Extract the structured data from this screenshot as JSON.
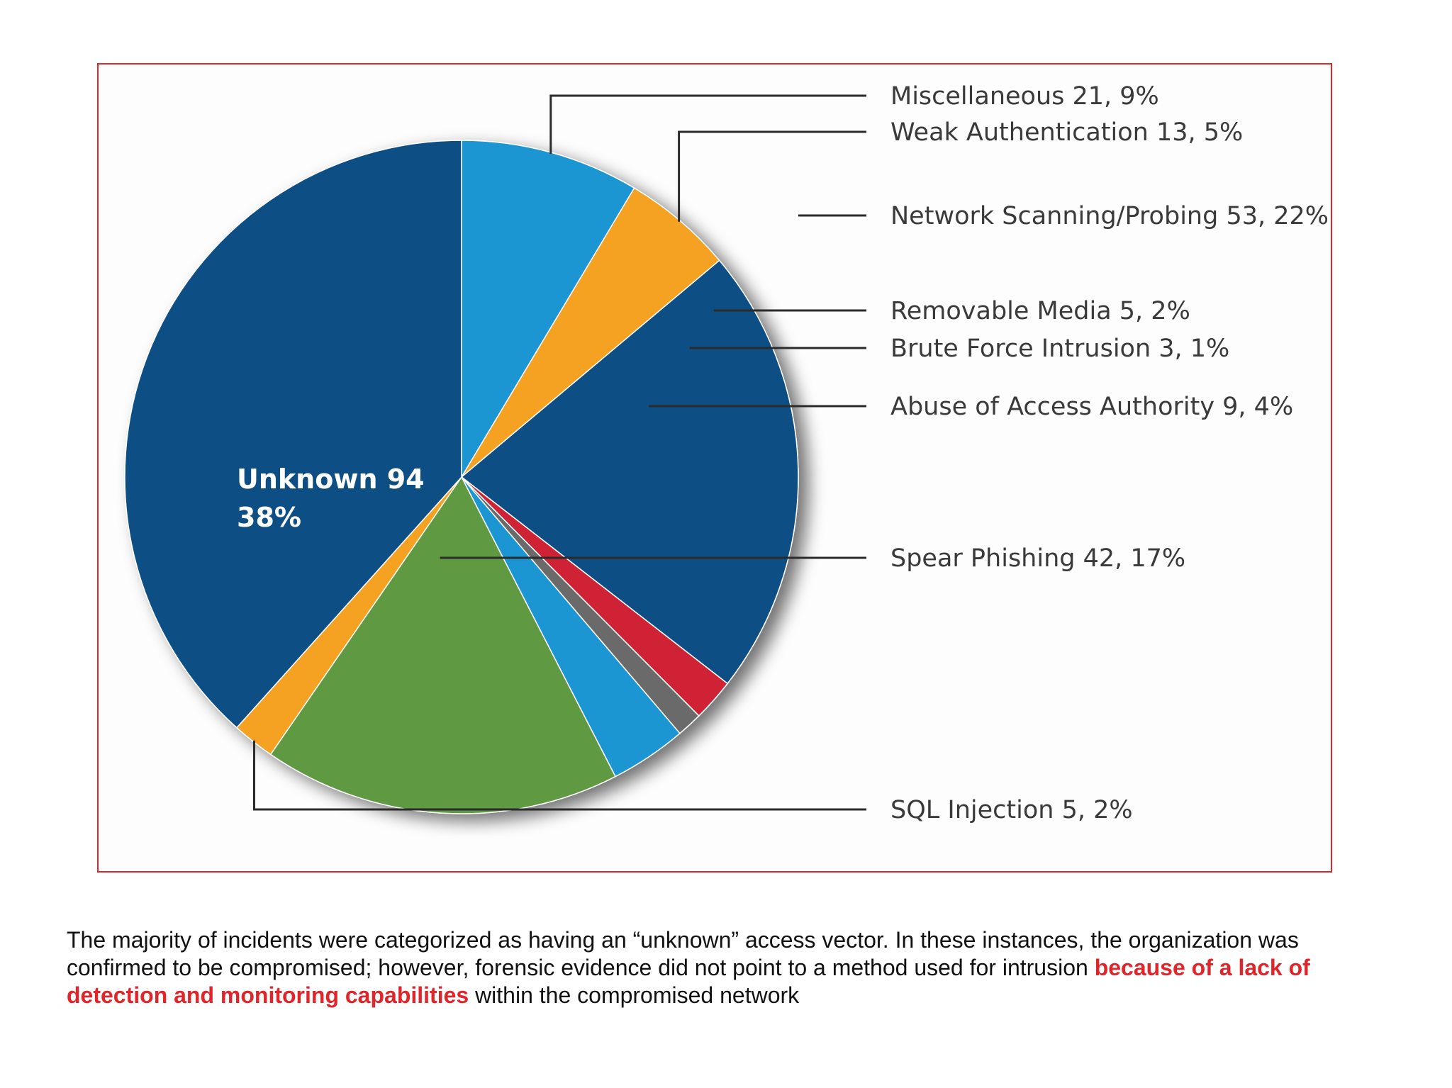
{
  "chart_data": {
    "type": "pie",
    "slices": [
      {
        "label": "Miscellaneous",
        "value": 21,
        "percent": "9%",
        "color": "#1f96d3"
      },
      {
        "label": "Weak Authentication",
        "value": 13,
        "percent": "5%",
        "color": "#f5a121"
      },
      {
        "label": "Network Scanning/Probing",
        "value": 53,
        "percent": "22%",
        "color": "#0b4f85"
      },
      {
        "label": "Removable Media",
        "value": 5,
        "percent": "2%",
        "color": "#cf2336"
      },
      {
        "label": "Brute Force Intrusion",
        "value": 3,
        "percent": "1%",
        "color": "#6b6b6b"
      },
      {
        "label": "Abuse of Access Authority",
        "value": 9,
        "percent": "4%",
        "color": "#1f96d3"
      },
      {
        "label": "Spear Phishing",
        "value": 42,
        "percent": "17%",
        "color": "#5e9a43"
      },
      {
        "label": "SQL Injection",
        "value": 5,
        "percent": "2%",
        "color": "#f5a121"
      },
      {
        "label": "Unknown",
        "value": 94,
        "percent": "38%",
        "color": "#0b4f85"
      }
    ],
    "labels": [
      "Miscellaneous 21, 9%",
      "Weak Authentication 13,  5%",
      "Network Scanning/Probing 53, 22%",
      "Removable Media 5, 2%",
      "Brute Force Intrusion 3, 1%",
      "Abuse of Access Authority 9, 4%",
      "Spear Phishing 42, 17%",
      "SQL Injection 5, 2%"
    ],
    "inner_label": {
      "line1": "Unknown 94",
      "line2": "38%"
    }
  },
  "caption": {
    "part1": "The majority of incidents were categorized as having an “unknown” access vector. In these instances, the organization was confirmed to be compromised; however, forensic evidence did not point to a method used for intrusion ",
    "highlight": "because of a lack of detection and monitoring capabilities",
    "part2": " within the compromised network"
  },
  "colors": {
    "frame": "#e0262b",
    "highlight": "#e0262b"
  }
}
